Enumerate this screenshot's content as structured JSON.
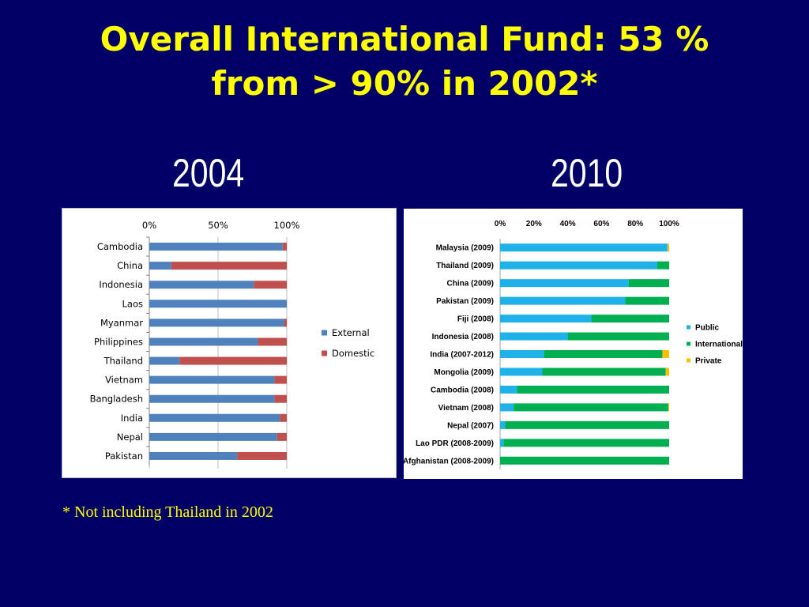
{
  "slide": {
    "title_line1": "Overall International Fund: 53 %",
    "title_line2": "from > 90% in 2002*",
    "year_left": "2004",
    "year_right": "2010",
    "footnote": "* Not including Thailand in 2002"
  },
  "chart_data": [
    {
      "type": "bar",
      "orientation": "horizontal",
      "stacked": "100%",
      "title": "2004",
      "categories": [
        "Cambodia",
        "China",
        "Indonesia",
        "Laos",
        "Myanmar",
        "Philippines",
        "Thailand",
        "Vietnam",
        "Bangladesh",
        "India",
        "Nepal",
        "Pakistan"
      ],
      "series": [
        {
          "name": "External",
          "color": "#4f81bd",
          "values": [
            97,
            16,
            76,
            100,
            98,
            79,
            22,
            91,
            91,
            95,
            93,
            64
          ]
        },
        {
          "name": "Domestic",
          "color": "#c0504d",
          "values": [
            3,
            84,
            24,
            0,
            2,
            21,
            78,
            9,
            9,
            5,
            7,
            36
          ]
        }
      ],
      "xticks": [
        "0%",
        "50%",
        "100%"
      ],
      "xlim": [
        0,
        100
      ],
      "legend": "right",
      "grid": true
    },
    {
      "type": "bar",
      "orientation": "horizontal",
      "stacked": "100%",
      "title": "2010",
      "categories": [
        "Malaysia (2009)",
        "Thailand (2009)",
        "China (2009)",
        "Pakistan (2009)",
        "Fiji (2008)",
        "Indonesia (2008)",
        "India (2007-2012)",
        "Mongolia (2009)",
        "Cambodia (2008)",
        "Vietnam (2008)",
        "Nepal (2007)",
        "Lao PDR (2008-2009)",
        "Afghanistan (2008-2009)"
      ],
      "series": [
        {
          "name": "Public",
          "color": "#1fb2e8",
          "values": [
            99,
            93,
            76,
            74,
            54,
            40,
            26,
            25,
            10,
            8,
            3,
            2,
            0
          ]
        },
        {
          "name": "International",
          "color": "#00b050",
          "values": [
            0,
            7,
            24,
            26,
            46,
            60,
            70,
            73,
            90,
            91.5,
            97,
            98,
            100
          ]
        },
        {
          "name": "Private",
          "color": "#ffc000",
          "values": [
            1,
            0,
            0,
            0,
            0,
            0,
            4,
            2,
            0,
            0.5,
            0,
            0,
            0
          ]
        }
      ],
      "xticks": [
        "0%",
        "20%",
        "40%",
        "60%",
        "80%",
        "100%"
      ],
      "xlim": [
        0,
        100
      ],
      "legend": "right",
      "grid": false
    }
  ]
}
